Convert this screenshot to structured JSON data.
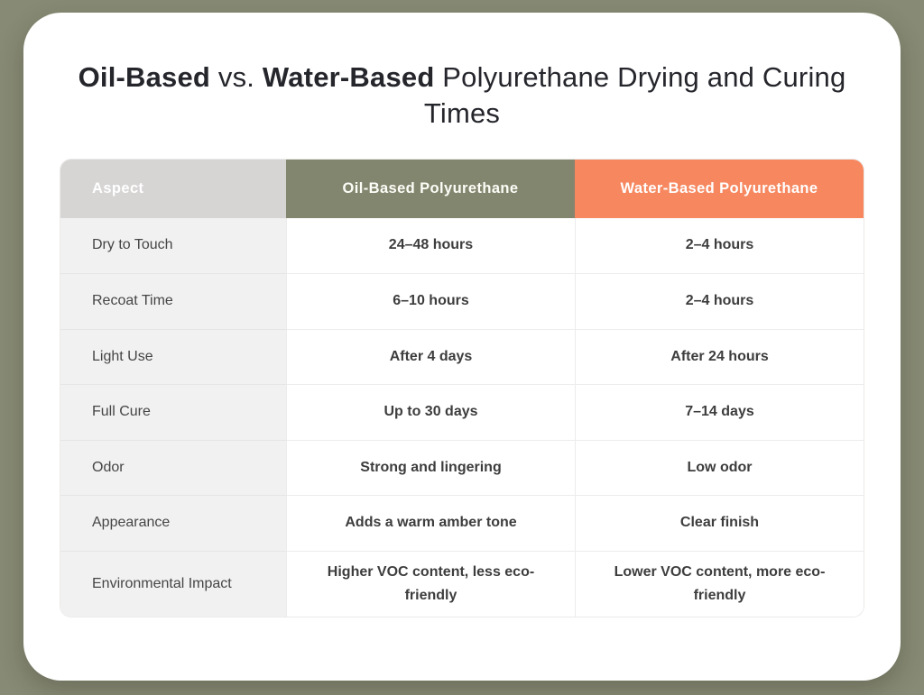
{
  "page": {
    "background_color": "#878a74",
    "card_color": "#ffffff"
  },
  "title": {
    "part1": "Oil-Based",
    "part2": " vs. ",
    "part3": "Water-Based",
    "part4": " Polyurethane Drying and Curing Times"
  },
  "table": {
    "headers": [
      {
        "label": "Aspect",
        "bg": "#d6d5d4",
        "fg": "#ffffff"
      },
      {
        "label": "Oil-Based Polyurethane",
        "bg": "#83866e",
        "fg": "#fdfdf8"
      },
      {
        "label": "Water-Based Polyurethane",
        "bg": "#f6875f",
        "fg": "#ffffff"
      }
    ],
    "rows": [
      {
        "aspect": "Dry to Touch",
        "oil": "24–48 hours",
        "water": "2–4 hours"
      },
      {
        "aspect": "Recoat Time",
        "oil": "6–10 hours",
        "water": "2–4 hours"
      },
      {
        "aspect": "Light Use",
        "oil": "After 4 days",
        "water": "After 24 hours"
      },
      {
        "aspect": "Full Cure",
        "oil": "Up to 30 days",
        "water": "7–14 days"
      },
      {
        "aspect": "Odor",
        "oil": "Strong and lingering",
        "water": "Low odor"
      },
      {
        "aspect": "Appearance",
        "oil": "Adds a warm amber tone",
        "water": "Clear finish"
      },
      {
        "aspect": "Environmental Impact",
        "oil": "Higher VOC content, less eco-friendly",
        "water": "Lower VOC content, more eco-friendly"
      }
    ]
  },
  "chart_data": {
    "type": "table",
    "title": "Oil-Based vs. Water-Based Polyurethane Drying and Curing Times",
    "columns": [
      "Aspect",
      "Oil-Based Polyurethane",
      "Water-Based Polyurethane"
    ],
    "rows": [
      [
        "Dry to Touch",
        "24–48 hours",
        "2–4 hours"
      ],
      [
        "Recoat Time",
        "6–10 hours",
        "2–4 hours"
      ],
      [
        "Light Use",
        "After 4 days",
        "After 24 hours"
      ],
      [
        "Full Cure",
        "Up to 30 days",
        "7–14 days"
      ],
      [
        "Odor",
        "Strong and lingering",
        "Low odor"
      ],
      [
        "Appearance",
        "Adds a warm amber tone",
        "Clear finish"
      ],
      [
        "Environmental Impact",
        "Higher VOC content, less eco-friendly",
        "Lower VOC content, more eco-friendly"
      ]
    ]
  }
}
